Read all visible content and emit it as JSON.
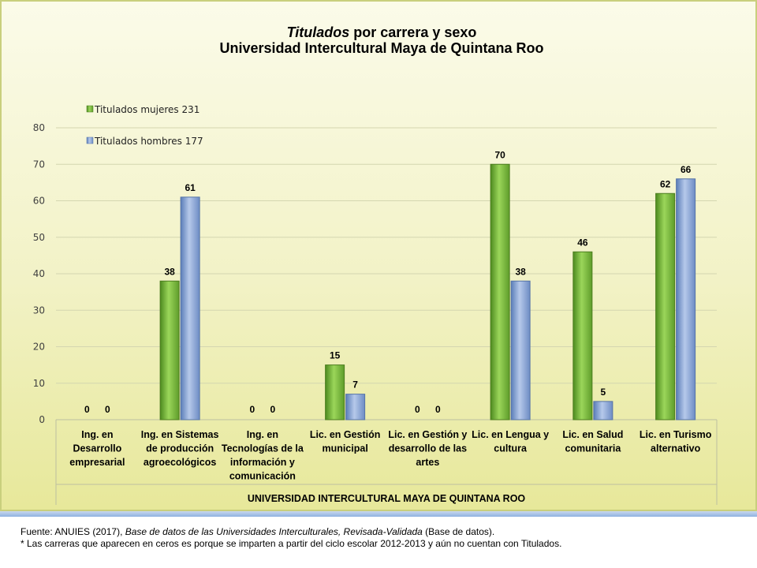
{
  "chart_data": {
    "type": "bar",
    "title_italic": "Titulados",
    "title_rest": " por carrera y sexo",
    "subtitle": "Universidad Intercultural Maya de Quintana Roo",
    "xlabel": "UNIVERSIDAD INTERCULTURAL MAYA DE QUINTANA ROO",
    "ylim": [
      0,
      80
    ],
    "yticks": [
      0,
      10,
      20,
      30,
      40,
      50,
      60,
      70,
      80
    ],
    "grid": true,
    "legend_position": "top-left",
    "categories": [
      [
        "Ing. en",
        "Desarrollo",
        "empresarial"
      ],
      [
        "Ing. en Sistemas",
        "de producción",
        "agroecológicos"
      ],
      [
        "Ing. en",
        "Tecnologías de la",
        "información y",
        "comunicación"
      ],
      [
        "Lic. en Gestión",
        "municipal"
      ],
      [
        "Lic. en Gestión y",
        "desarrollo de las",
        "artes"
      ],
      [
        "Lic. en Lengua y",
        "cultura"
      ],
      [
        "Lic. en Salud",
        "comunitaria"
      ],
      [
        "Lic. en Turismo",
        "alternativo"
      ]
    ],
    "series": [
      {
        "name": "Titulados mujeres 231",
        "values": [
          0,
          38,
          0,
          15,
          0,
          70,
          46,
          62
        ],
        "color": "#7dc242"
      },
      {
        "name": "Titulados hombres  177",
        "values": [
          0,
          61,
          0,
          7,
          0,
          38,
          5,
          66
        ],
        "color": "#8eaadb"
      }
    ]
  },
  "footer": {
    "source_prefix": "Fuente: ANUIES (2017), ",
    "source_italic": "Base de datos de las Universidades  Interculturales, Revisada-Validada",
    "source_suffix": "  (Base de datos).",
    "note": "* Las carreras que aparecen en ceros es porque  se imparten  a partir del ciclo escolar 2012-2013  y aún no cuentan con Titulados."
  }
}
